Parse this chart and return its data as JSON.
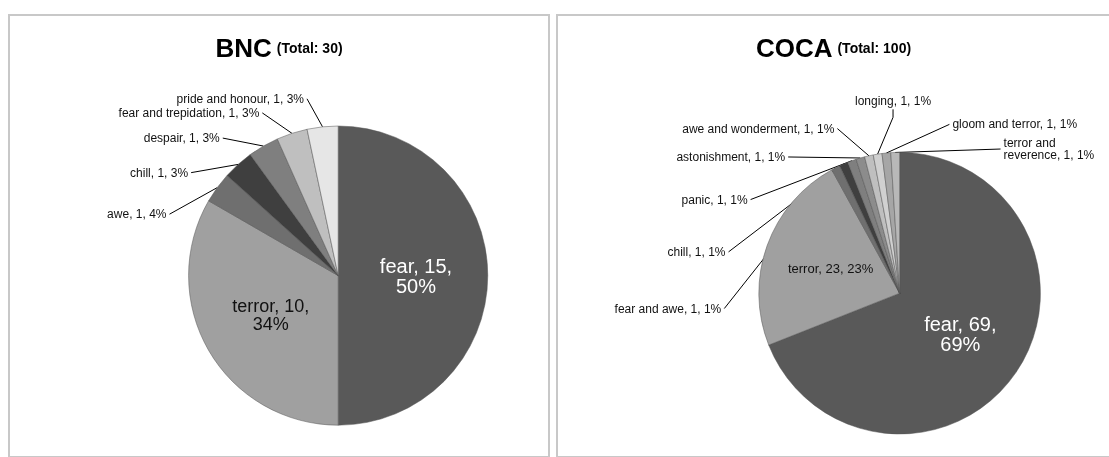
{
  "chart_data": [
    {
      "type": "pie",
      "title": "BNC",
      "subtitle": "(Total: 30)",
      "categories": [
        "fear",
        "terror",
        "awe",
        "chill",
        "despair",
        "fear and trepidation",
        "pride and honour"
      ],
      "values": [
        15,
        10,
        1,
        1,
        1,
        1,
        1
      ],
      "value_labels": [
        "15, 50%",
        "10, 34%",
        "1, 4%",
        "1, 3%",
        "1, 3%",
        "1, 3%",
        "1, 3%"
      ],
      "colors": [
        "#595959",
        "#a0a0a0",
        "#6f6f6f",
        "#3f3f3f",
        "#7f7f7f",
        "#bfbfbf",
        "#e6e6e6"
      ]
    },
    {
      "type": "pie",
      "title": "COCA",
      "subtitle": "(Total: 100)",
      "categories": [
        "fear",
        "terror",
        "fear and awe",
        "chill",
        "panic",
        "astonishment",
        "awe and wonderment",
        "longing",
        "gloom and terror",
        "terror and reverence"
      ],
      "values": [
        69,
        23,
        1,
        1,
        1,
        1,
        1,
        1,
        1,
        1
      ],
      "value_labels": [
        "69, 69%",
        "23, 23%",
        "1, 1%",
        "1, 1%",
        "1, 1%",
        "1, 1%",
        "1, 1%",
        "1, 1%",
        "1, 1%",
        "1, 1%"
      ],
      "colors": [
        "#595959",
        "#a0a0a0",
        "#6f6f6f",
        "#3f3f3f",
        "#7f7f7f",
        "#8c8c8c",
        "#bfbfbf",
        "#d0d0d0",
        "#a6a6a6",
        "#b8b8b8"
      ]
    }
  ]
}
